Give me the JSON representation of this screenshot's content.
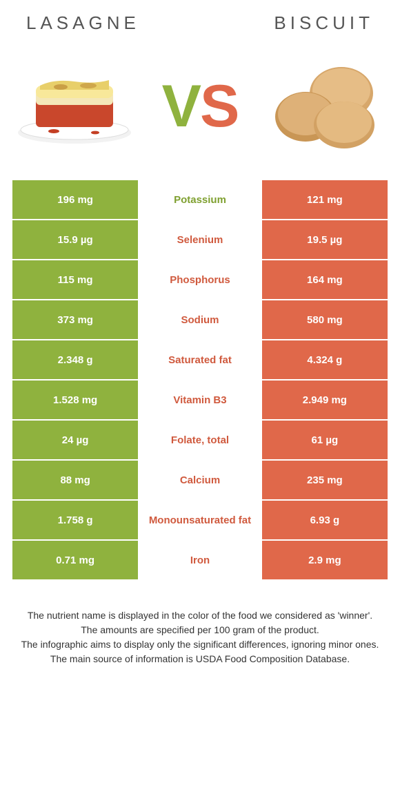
{
  "colors": {
    "green": "#8fb23e",
    "orange": "#e0684a",
    "mid_green_text": "#7fa030",
    "mid_orange_text": "#d05a3e",
    "white": "#ffffff"
  },
  "header": {
    "left_title": "Lasagne",
    "right_title": "Biscuit",
    "vs_v": "V",
    "vs_s": "S"
  },
  "rows": [
    {
      "left": "196 mg",
      "label": "Potassium",
      "right": "121 mg",
      "winner": "left"
    },
    {
      "left": "15.9 µg",
      "label": "Selenium",
      "right": "19.5 µg",
      "winner": "right"
    },
    {
      "left": "115 mg",
      "label": "Phosphorus",
      "right": "164 mg",
      "winner": "right"
    },
    {
      "left": "373 mg",
      "label": "Sodium",
      "right": "580 mg",
      "winner": "right"
    },
    {
      "left": "2.348 g",
      "label": "Saturated fat",
      "right": "4.324 g",
      "winner": "right"
    },
    {
      "left": "1.528 mg",
      "label": "Vitamin B3",
      "right": "2.949 mg",
      "winner": "right"
    },
    {
      "left": "24 µg",
      "label": "Folate, total",
      "right": "61 µg",
      "winner": "right"
    },
    {
      "left": "88 mg",
      "label": "Calcium",
      "right": "235 mg",
      "winner": "right"
    },
    {
      "left": "1.758 g",
      "label": "Monounsaturated fat",
      "right": "6.93 g",
      "winner": "right"
    },
    {
      "left": "0.71 mg",
      "label": "Iron",
      "right": "2.9 mg",
      "winner": "right"
    }
  ],
  "footnotes": [
    "The nutrient name is displayed in the color of the food we considered as 'winner'.",
    "The amounts are specified per 100 gram of the product.",
    "The infographic aims to display only the significant differences, ignoring minor ones.",
    "The main source of information is USDA Food Composition Database."
  ]
}
